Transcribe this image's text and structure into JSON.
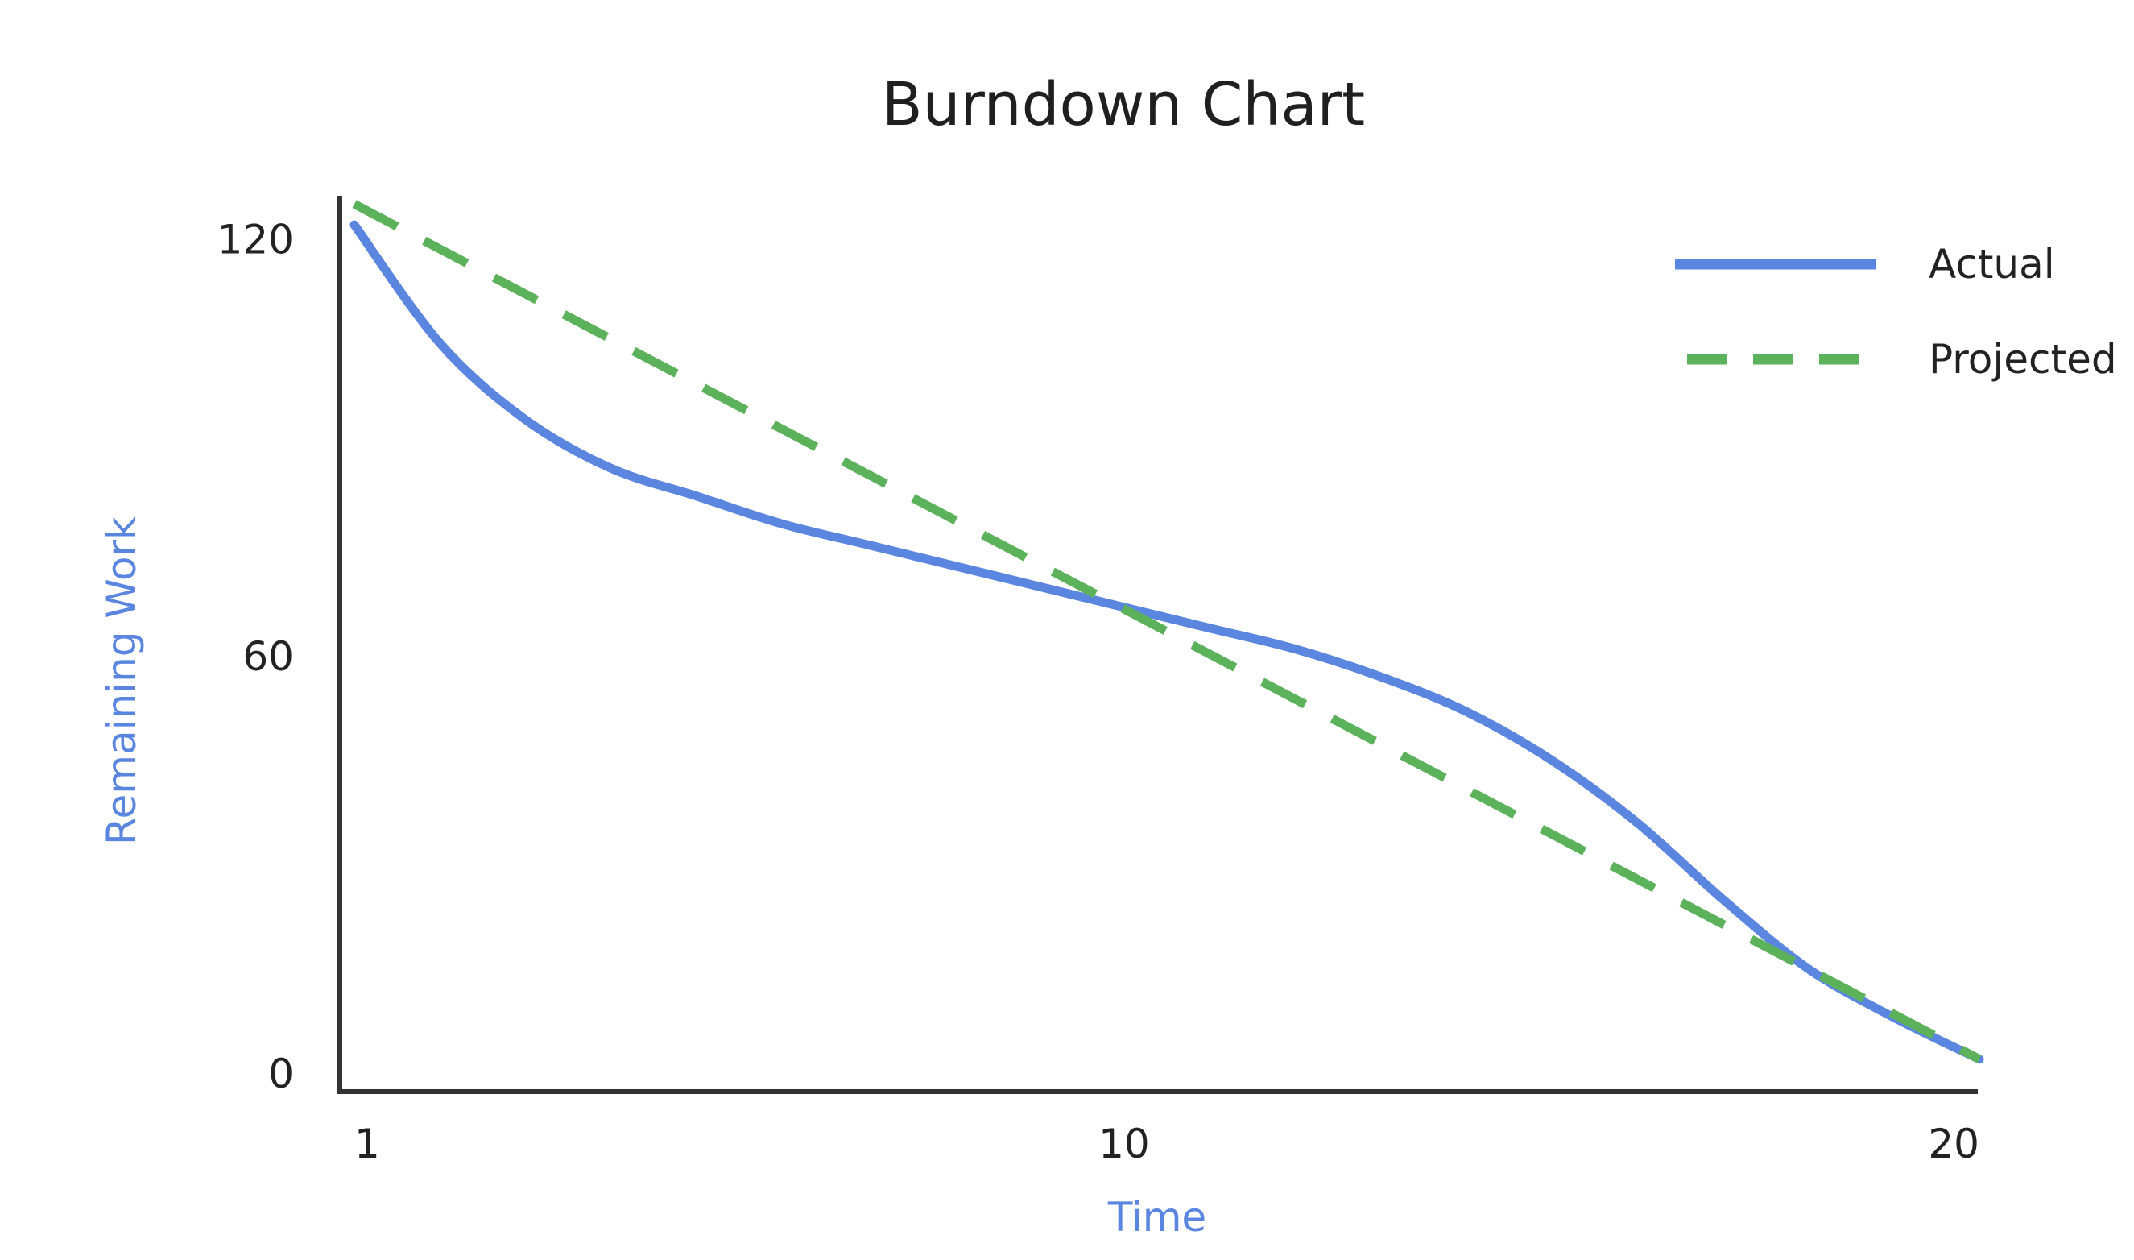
{
  "chart_data": {
    "type": "line",
    "title": "Burndown Chart",
    "xlabel": "Time",
    "ylabel": "Remaining Work",
    "xlim": [
      1,
      20
    ],
    "ylim": [
      0,
      120
    ],
    "x_ticks": [
      1,
      10,
      20
    ],
    "y_ticks": [
      0,
      60,
      120
    ],
    "grid": false,
    "legend_position": "top-right",
    "axis_label_color": "#5b86e0",
    "series": [
      {
        "name": "Actual",
        "style": "solid",
        "color": "#5b86e0",
        "x": [
          1,
          2,
          3,
          4,
          5,
          6,
          7,
          8,
          9,
          10,
          11,
          12,
          13,
          14,
          15,
          16,
          17,
          18,
          19,
          20
        ],
        "y": [
          122,
          105,
          94,
          87,
          83,
          79,
          76,
          73,
          70,
          67,
          64,
          61,
          57,
          52,
          45,
          36,
          25,
          15,
          8,
          2
        ]
      },
      {
        "name": "Projected",
        "style": "dashed",
        "color": "#5cb25a",
        "x": [
          1,
          20
        ],
        "y": [
          125,
          2
        ]
      }
    ]
  }
}
